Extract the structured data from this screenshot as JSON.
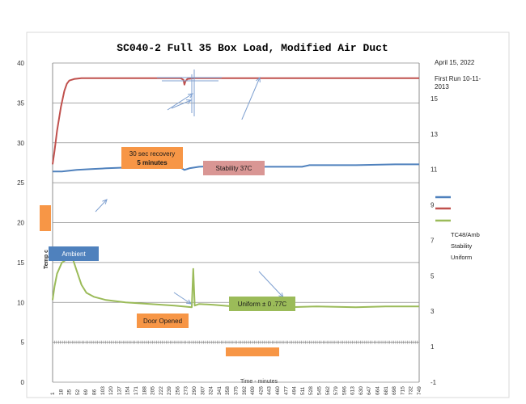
{
  "chart_data": {
    "type": "line",
    "title": "SC040-2 Full 35 Box Load, Modified Air Duct",
    "ylabel": "Temp c",
    "xlabel": "Time - minutes",
    "ylim": [
      0,
      40
    ],
    "y_ticks": [
      0,
      5,
      10,
      15,
      20,
      25,
      30,
      35,
      40
    ],
    "y2lim": [
      -1,
      17
    ],
    "y2_ticks": [
      -1,
      1,
      3,
      5,
      7,
      9,
      11,
      13,
      15
    ],
    "x_ticks": [
      "1",
      "18",
      "35",
      "52",
      "69",
      "86",
      "103",
      "120",
      "137",
      "154",
      "171",
      "188",
      "205",
      "222",
      "239",
      "256",
      "273",
      "290",
      "307",
      "324",
      "341",
      "358",
      "375",
      "392",
      "409",
      "426",
      "443",
      "460",
      "477",
      "494",
      "511",
      "528",
      "545",
      "562",
      "579",
      "596",
      "613",
      "630",
      "647",
      "664",
      "681",
      "698",
      "715",
      "732",
      "749"
    ],
    "grid": "horizontal",
    "legend_position": "right",
    "legend_labels": [
      "TC48/Amb",
      "Stability",
      "Uniform"
    ],
    "colors": {
      "ambient": "#4f81bd",
      "stability": "#c0504d",
      "uniform": "#9bbb59",
      "callout_orange": "#f79646",
      "callout_pink": "#d99694"
    },
    "series": [
      {
        "key": "stability",
        "axis": "left",
        "points": [
          [
            1,
            27.3
          ],
          [
            5,
            29
          ],
          [
            10,
            31.5
          ],
          [
            18,
            34.5
          ],
          [
            25,
            36.5
          ],
          [
            30,
            37.4
          ],
          [
            35,
            37.8
          ],
          [
            45,
            38.0
          ],
          [
            60,
            38.1
          ],
          [
            80,
            38.1
          ],
          [
            100,
            38.1
          ],
          [
            140,
            38.1
          ],
          [
            180,
            38.1
          ],
          [
            220,
            38.1
          ],
          [
            262,
            38.1
          ],
          [
            268,
            37.9
          ],
          [
            270,
            37.3
          ],
          [
            272,
            37.7
          ],
          [
            276,
            38.0
          ],
          [
            290,
            38.1
          ],
          [
            330,
            38.1
          ],
          [
            400,
            38.1
          ],
          [
            500,
            38.1
          ],
          [
            600,
            38.1
          ],
          [
            700,
            38.1
          ],
          [
            749,
            38.1
          ]
        ]
      },
      {
        "key": "ambient",
        "axis": "left",
        "points": [
          [
            1,
            26.4
          ],
          [
            20,
            26.4
          ],
          [
            50,
            26.6
          ],
          [
            80,
            26.7
          ],
          [
            110,
            26.8
          ],
          [
            150,
            26.9
          ],
          [
            200,
            27.0
          ],
          [
            250,
            27.0
          ],
          [
            262,
            26.9
          ],
          [
            270,
            26.6
          ],
          [
            280,
            26.8
          ],
          [
            300,
            27.0
          ],
          [
            340,
            27.1
          ],
          [
            380,
            27.2
          ],
          [
            410,
            27.1
          ],
          [
            420,
            27.0
          ],
          [
            480,
            27.0
          ],
          [
            510,
            27.0
          ],
          [
            525,
            27.2
          ],
          [
            560,
            27.2
          ],
          [
            620,
            27.2
          ],
          [
            700,
            27.3
          ],
          [
            749,
            27.3
          ]
        ]
      },
      {
        "key": "uniform",
        "axis": "left",
        "points": [
          [
            1,
            10.3
          ],
          [
            5,
            12
          ],
          [
            10,
            13.6
          ],
          [
            15,
            14.3
          ],
          [
            20,
            15.0
          ],
          [
            25,
            15.2
          ],
          [
            35,
            15.5
          ],
          [
            42,
            15.5
          ],
          [
            50,
            14.0
          ],
          [
            60,
            12.2
          ],
          [
            70,
            11.2
          ],
          [
            85,
            10.7
          ],
          [
            110,
            10.3
          ],
          [
            150,
            10.0
          ],
          [
            200,
            9.8
          ],
          [
            250,
            9.6
          ],
          [
            285,
            9.4
          ],
          [
            288,
            14.2
          ],
          [
            291,
            9.6
          ],
          [
            300,
            9.8
          ],
          [
            330,
            9.7
          ],
          [
            370,
            9.5
          ],
          [
            420,
            9.4
          ],
          [
            480,
            9.4
          ],
          [
            540,
            9.5
          ],
          [
            620,
            9.4
          ],
          [
            680,
            9.5
          ],
          [
            749,
            9.5
          ]
        ]
      }
    ],
    "annotations": {
      "date": "April 15, 2022",
      "first_run": "First Run 10-11-",
      "first_run_year": "2013",
      "recovery_line1": "30 sec recovery",
      "recovery_line2": "5 minutes",
      "stability_label": "Stability  37C",
      "ambient_label": "Ambient",
      "uniform_label": "Uniform  ± 0 .77C",
      "door_label": "Door Opened"
    }
  }
}
